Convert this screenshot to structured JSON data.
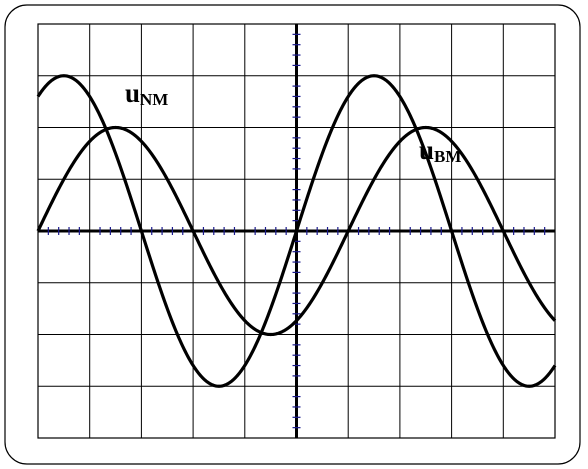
{
  "chart_data": {
    "type": "line",
    "title": "",
    "xlabel": "",
    "ylabel": "",
    "grid": true,
    "divisions": {
      "x": 10,
      "y": 8
    },
    "minor_ticks_per_division": 5,
    "xlim": [
      -5,
      5
    ],
    "ylim": [
      -4,
      4
    ],
    "series": [
      {
        "key": "nm",
        "label_main": "u",
        "label_sub": "NM",
        "amplitude": 3.0,
        "period": 6.0,
        "phase_deg": 0
      },
      {
        "key": "bm",
        "label_main": "u",
        "label_sub": "BM",
        "amplitude": 2.0,
        "period": 6.0,
        "phase_deg": -60
      }
    ],
    "colors": {
      "trace": "#000000",
      "grid": "#000000",
      "axis_ticks": "#1a1a8c",
      "frame": "#000000"
    }
  }
}
